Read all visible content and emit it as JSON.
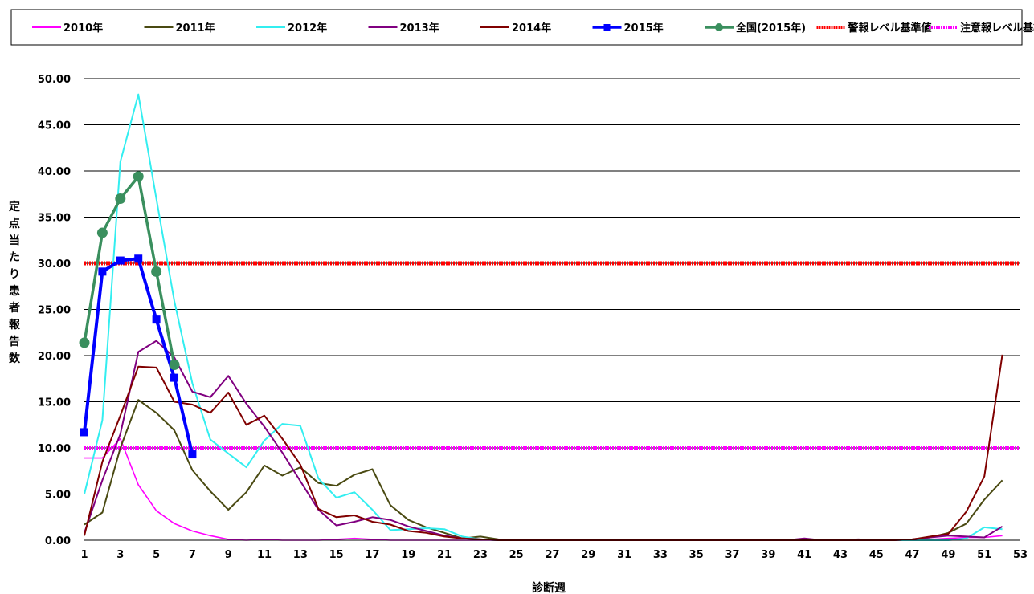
{
  "chart_data": {
    "type": "line",
    "xlabel": "診断週",
    "ylabel": "定点当たり患者報告数",
    "xlim": [
      1,
      53
    ],
    "ylim": [
      0,
      50
    ],
    "x_ticks": [
      1,
      3,
      5,
      7,
      9,
      11,
      13,
      15,
      17,
      19,
      21,
      23,
      25,
      27,
      29,
      31,
      33,
      35,
      37,
      39,
      41,
      43,
      45,
      47,
      49,
      51,
      53
    ],
    "y_ticks": [
      "0.00",
      "5.00",
      "10.00",
      "15.00",
      "20.00",
      "25.00",
      "30.00",
      "35.00",
      "40.00",
      "45.00",
      "50.00"
    ],
    "grid": "horizontal",
    "legend_position": "top",
    "series": [
      {
        "name": "2010年",
        "color": "#ff00ff",
        "width": 1.6,
        "marker": "none",
        "values": [
          8.9,
          8.9,
          11.0,
          6.0,
          3.2,
          1.8,
          1.0,
          0.5,
          0.1,
          0.0,
          0.1,
          0.0,
          0.0,
          0.0,
          0.1,
          0.2,
          0.1,
          0.0,
          0.0,
          0.0,
          0,
          0,
          0,
          0,
          0,
          0,
          0,
          0,
          0,
          0,
          0,
          0,
          0,
          0,
          0,
          0,
          0,
          0,
          0,
          0,
          0,
          0,
          0,
          0,
          0,
          0,
          0,
          0.1,
          0.2,
          0.3,
          0.3,
          0.5
        ]
      },
      {
        "name": "2011年",
        "color": "#4a4a12",
        "width": 2,
        "marker": "none",
        "values": [
          1.7,
          3.0,
          10.0,
          15.2,
          13.8,
          11.9,
          7.6,
          5.3,
          3.3,
          5.2,
          8.1,
          7.0,
          7.9,
          6.2,
          5.9,
          7.1,
          7.7,
          3.8,
          2.2,
          1.4,
          0.8,
          0.2,
          0.4,
          0.1,
          0.0,
          0,
          0,
          0,
          0,
          0,
          0,
          0,
          0,
          0,
          0,
          0,
          0,
          0,
          0,
          0,
          0,
          0,
          0,
          0,
          0,
          0,
          0.1,
          0.3,
          0.8,
          1.8,
          4.4,
          6.5
        ]
      },
      {
        "name": "2012年",
        "color": "#33eef0",
        "width": 2,
        "marker": "none",
        "values": [
          5.0,
          13.0,
          41.0,
          48.3,
          37.0,
          25.9,
          17.0,
          10.9,
          9.4,
          7.9,
          10.8,
          12.6,
          12.4,
          6.7,
          4.6,
          5.2,
          3.3,
          1.1,
          1.2,
          1.3,
          1.2,
          0.4,
          0.1,
          0.0,
          0,
          0,
          0,
          0,
          0,
          0,
          0,
          0,
          0,
          0,
          0,
          0,
          0,
          0,
          0,
          0,
          0,
          0,
          0,
          0,
          0,
          0,
          0,
          0,
          0,
          0.2,
          1.4,
          1.2
        ]
      },
      {
        "name": "2013年",
        "color": "#800080",
        "width": 2,
        "marker": "none",
        "values": [
          0.8,
          6.5,
          11.5,
          20.4,
          21.6,
          19.8,
          16.1,
          15.5,
          17.8,
          14.8,
          12.3,
          9.5,
          6.4,
          3.3,
          1.6,
          2.0,
          2.5,
          2.2,
          1.5,
          1.0,
          0.5,
          0.2,
          0.1,
          0.0,
          0,
          0,
          0,
          0,
          0,
          0,
          0,
          0,
          0,
          0,
          0,
          0,
          0,
          0,
          0,
          0,
          0.2,
          0.0,
          0,
          0.1,
          0.0,
          0,
          0.1,
          0.3,
          0.5,
          0.4,
          0.3,
          1.5
        ]
      },
      {
        "name": "2014年",
        "color": "#800000",
        "width": 2,
        "marker": "none",
        "values": [
          0.5,
          8.5,
          13.5,
          18.8,
          18.7,
          15.0,
          14.7,
          13.8,
          16.0,
          12.5,
          13.5,
          11.0,
          8.2,
          3.4,
          2.5,
          2.7,
          2.0,
          1.7,
          1.0,
          0.8,
          0.4,
          0.2,
          0.1,
          0.0,
          0,
          0,
          0,
          0,
          0,
          0,
          0,
          0,
          0,
          0,
          0,
          0,
          0,
          0,
          0,
          0,
          0,
          0,
          0,
          0,
          0,
          0,
          0.1,
          0.4,
          0.7,
          3.1,
          6.9,
          20.1
        ]
      },
      {
        "name": "2015年",
        "color": "#0000ff",
        "width": 4,
        "marker": "square",
        "values": [
          11.7,
          29.1,
          30.3,
          30.5,
          23.9,
          17.6,
          9.3
        ]
      },
      {
        "name": "全国(2015年)",
        "color": "#3a8f5e",
        "width": 3.5,
        "marker": "circle",
        "values": [
          21.4,
          33.3,
          37.0,
          39.4,
          29.1,
          19.0
        ]
      },
      {
        "name": "警報レベル基準値",
        "color": "#ff0000",
        "width": 5,
        "marker": "none",
        "dashed": true,
        "constant": 30
      },
      {
        "name": "注意報レベル基準値",
        "color": "#ff00ff",
        "width": 5,
        "marker": "none",
        "dashed": true,
        "constant": 10
      }
    ]
  }
}
